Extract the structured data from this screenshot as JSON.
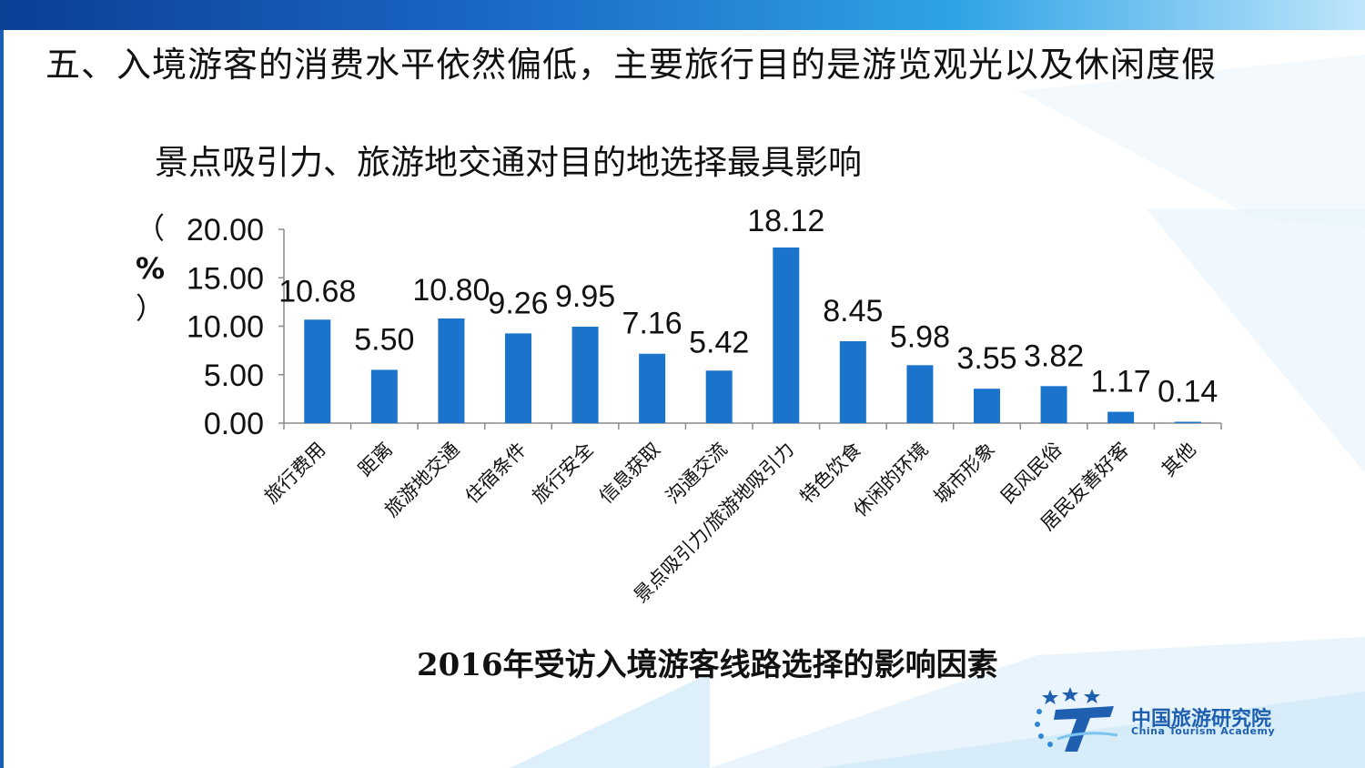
{
  "heading": "五、入境游客的消费水平依然偏低，主要旅行目的是游览观光以及休闲度假",
  "subheading": "景点吸引力、旅游地交通对目的地选择最具影响",
  "caption": "2016年受访入境游客线路选择的影响因素",
  "logo": {
    "name_cn": "中国旅游研究院",
    "name_en": "China Tourism Academy"
  },
  "colors": {
    "bar": "#1b74cc",
    "top_bar_start": "#0a3f96",
    "top_bar_end": "#bfe6fb",
    "logo": "#1f5fb0"
  },
  "chart_data": {
    "type": "bar",
    "title": "",
    "xlabel": "",
    "ylabel": "（%）",
    "ylim": [
      0,
      20
    ],
    "yticks": [
      "0.00",
      "5.00",
      "10.00",
      "15.00",
      "20.00"
    ],
    "categories": [
      "旅行费用",
      "距离",
      "旅游地交通",
      "住宿条件",
      "旅行安全",
      "信息获取",
      "沟通交流",
      "景点吸引力/旅游地吸引力",
      "特色饮食",
      "休闲的环境",
      "城市形象",
      "民风民俗",
      "居民友善好客",
      "其他"
    ],
    "values": [
      10.68,
      5.5,
      10.8,
      9.26,
      9.95,
      7.16,
      5.42,
      18.12,
      8.45,
      5.98,
      3.55,
      3.82,
      1.17,
      0.14
    ],
    "value_labels": [
      "10.68",
      "5.50",
      "10.80",
      "9.26",
      "9.95",
      "7.16",
      "5.42",
      "18.12",
      "8.45",
      "5.98",
      "3.55",
      "3.82",
      "1.17",
      "0.14"
    ],
    "grid": false,
    "legend": "none"
  }
}
